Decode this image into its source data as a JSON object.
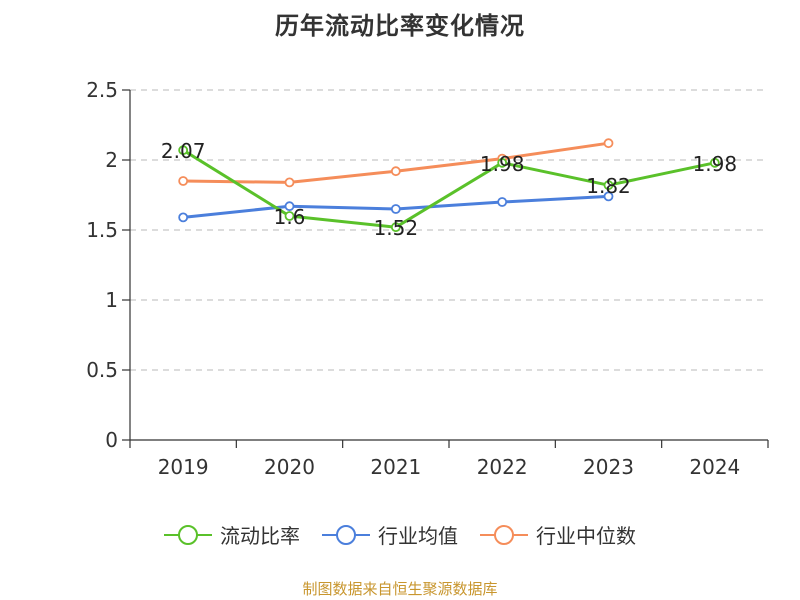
{
  "chart_data": {
    "type": "line",
    "title": "历年流动比率变化情况",
    "categories": [
      "2019",
      "2020",
      "2021",
      "2022",
      "2023",
      "2024"
    ],
    "ylim": [
      0,
      2.5
    ],
    "yticks": [
      "0",
      "0.5",
      "1",
      "1.5",
      "2",
      "2.5"
    ],
    "grid": true,
    "legend_position": "bottom",
    "series": [
      {
        "name": "流动比率",
        "color": "#5ac12a",
        "values": [
          2.07,
          1.6,
          1.52,
          1.98,
          1.82,
          1.98
        ],
        "labels": [
          "2.07",
          "1.6",
          "1.52",
          "1.98",
          "1.82",
          "1.98"
        ]
      },
      {
        "name": "行业均值",
        "color": "#4b7fdc",
        "values": [
          1.59,
          1.67,
          1.65,
          1.7,
          1.74,
          null
        ]
      },
      {
        "name": "行业中位数",
        "color": "#f58d5a",
        "values": [
          1.85,
          1.84,
          1.92,
          2.01,
          2.12,
          null
        ]
      }
    ]
  },
  "source_text": "制图数据来自恒生聚源数据库"
}
